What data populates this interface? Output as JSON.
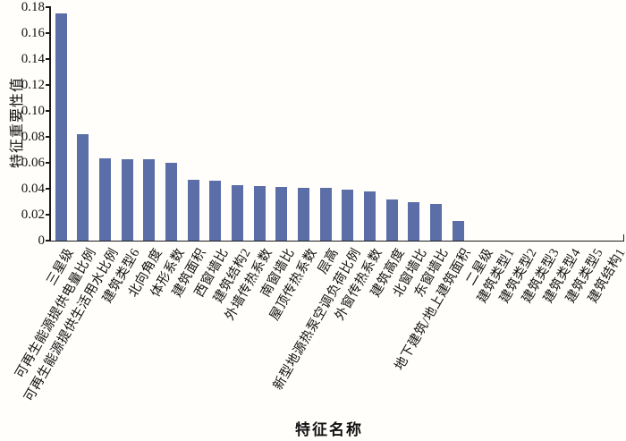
{
  "chart_data": {
    "type": "bar",
    "title": "",
    "xlabel": "特征名称",
    "ylabel": "特征重要性值",
    "categories": [
      "三星级",
      "可再生能源提供电量比例",
      "可再生能源提供生活用水比例",
      "建筑类型6",
      "北向角度",
      "体形系数",
      "建筑面积",
      "西窗墙比",
      "建筑结构2",
      "外墙传热系数",
      "南窗墙比",
      "屋顶传热系数",
      "层高",
      "新型地源热泵空调负荷比例",
      "外窗传热系数",
      "建筑高度",
      "北窗墙比",
      "东窗墙比",
      "地下建筑/地上建筑面积",
      "二星级",
      "建筑类型1",
      "建筑类型2",
      "建筑类型3",
      "建筑类型4",
      "建筑类型5",
      "建筑结构1"
    ],
    "values": [
      0.175,
      0.082,
      0.0635,
      0.063,
      0.0625,
      0.06,
      0.047,
      0.046,
      0.043,
      0.042,
      0.0415,
      0.041,
      0.0405,
      0.0395,
      0.038,
      0.032,
      0.03,
      0.028,
      0.015,
      0,
      0,
      0,
      0,
      0,
      0,
      0
    ],
    "ylim": [
      0,
      0.18
    ],
    "ytick_labels": [
      "0",
      "0.02",
      "0.04",
      "0.06",
      "0.08",
      "0.10",
      "0.12",
      "0.14",
      "0.16",
      "0.18"
    ],
    "ytick_values": [
      0,
      0.02,
      0.04,
      0.06,
      0.08,
      0.1,
      0.12,
      0.14,
      0.16,
      0.18
    ],
    "grid": false,
    "legend_position": "none",
    "bar_color": "#5B6EA8",
    "axis_color": "#1a1a1a"
  }
}
